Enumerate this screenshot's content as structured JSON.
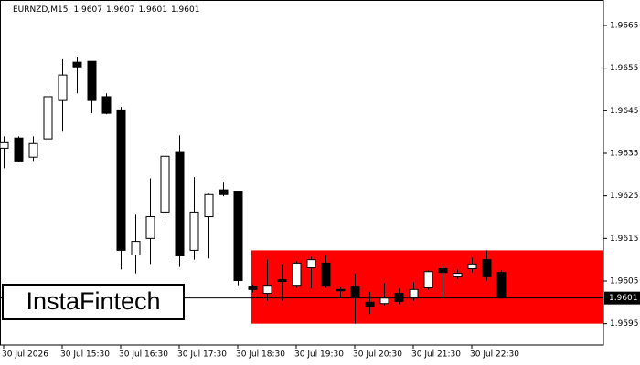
{
  "chart_data": {
    "type": "candlestick",
    "title": "EURNZD,M15",
    "header_ohlc": [
      1.9607,
      1.9607,
      1.9601,
      1.9601
    ],
    "watermark": "InstaFintech",
    "categories": [
      "30 Jul 2026",
      null,
      null,
      null,
      "30 Jul 15:30",
      null,
      null,
      null,
      "30 Jul 16:30",
      null,
      null,
      null,
      "30 Jul 17:30",
      null,
      null,
      null,
      "30 Jul 18:30",
      null,
      null,
      null,
      "30 Jul 19:30",
      null,
      null,
      null,
      "30 Jul 20:30",
      null,
      null,
      null,
      "30 Jul 21:30",
      null,
      null,
      null,
      "30 Jul 22:30",
      null,
      null
    ],
    "open": [
      1.96362,
      1.96386,
      1.96341,
      1.96384,
      1.96474,
      1.96564,
      1.96566,
      1.96483,
      1.96452,
      1.96111,
      1.9615,
      1.96212,
      1.96352,
      1.96122,
      1.96201,
      1.96264,
      1.96261,
      1.96038,
      1.96021,
      1.96053,
      1.9604,
      1.96081,
      1.96092,
      1.9603,
      1.96038,
      1.96,
      1.95997,
      1.96021,
      1.9601,
      1.96034,
      1.96079,
      1.9606,
      1.96079,
      1.961,
      1.9607
    ],
    "high": [
      1.9639,
      1.9639,
      1.9639,
      1.96489,
      1.96571,
      1.96575,
      1.96566,
      1.96491,
      1.96459,
      1.96206,
      1.96291,
      1.96352,
      1.96392,
      1.96294,
      1.96255,
      1.96283,
      1.96261,
      1.96042,
      1.961,
      1.9609,
      1.96096,
      1.96107,
      1.96109,
      1.96036,
      1.96068,
      1.96025,
      1.96045,
      1.96032,
      1.96047,
      1.96075,
      1.96085,
      1.96077,
      1.96105,
      1.96122,
      1.96075
    ],
    "low": [
      1.96315,
      1.9633,
      1.96332,
      1.96373,
      1.96401,
      1.96491,
      1.96444,
      1.96442,
      1.96077,
      1.96068,
      1.9609,
      1.96186,
      1.96083,
      1.961,
      1.96103,
      1.96249,
      1.9604,
      1.96023,
      1.96004,
      1.96004,
      1.96034,
      1.96032,
      1.96034,
      1.9601,
      1.9595,
      1.95972,
      1.95993,
      1.95995,
      1.96004,
      1.9603,
      1.9601,
      1.96055,
      1.9607,
      1.96051,
      1.9601
    ],
    "close": [
      1.96375,
      1.96332,
      1.96373,
      1.96483,
      1.96534,
      1.96553,
      1.96474,
      1.96444,
      1.96122,
      1.96143,
      1.96201,
      1.96343,
      1.96109,
      1.96212,
      1.96253,
      1.96253,
      1.96051,
      1.9603,
      1.9604,
      1.96049,
      1.96092,
      1.961,
      1.9604,
      1.96027,
      1.96012,
      1.95991,
      1.9601,
      1.96002,
      1.9603,
      1.96072,
      1.9607,
      1.96068,
      1.9609,
      1.9606,
      1.9601
    ],
    "up_color": "#ffffff",
    "down_color": "#000000",
    "zone": {
      "high": 1.96122,
      "low": 1.9595,
      "color": "#ff0000"
    },
    "last_price": 1.9601,
    "ylim": [
      1.959,
      1.9671
    ],
    "yticks": [
      1.9595,
      1.9605,
      1.9615,
      1.9625,
      1.9635,
      1.9645,
      1.9655,
      1.9665
    ]
  }
}
